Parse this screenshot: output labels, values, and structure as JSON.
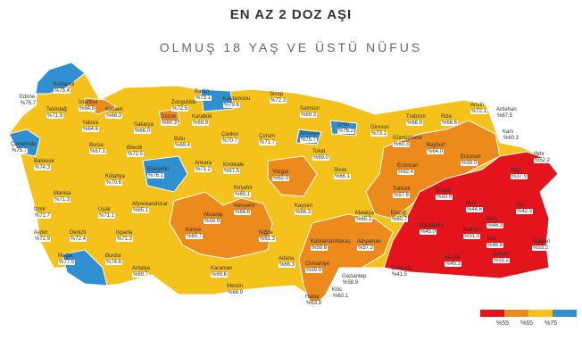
{
  "header": {
    "title": "EN AZ 2 DOZ AŞI",
    "subtitle": "OLMUŞ 18 YAŞ VE ÜSTÜ NÜFUS"
  },
  "colors": {
    "gt75": "#2f8fd0",
    "r65_75": "#f5c21b",
    "r55_65": "#ec8a1b",
    "lt55": "#e3141b",
    "border": "#ffffff"
  },
  "legend": {
    "labels": [
      "%55",
      "%65",
      "%75"
    ],
    "colors": [
      "#e3141b",
      "#ec8a1b",
      "#f5c21b",
      "#2f8fd0"
    ]
  },
  "provinces": [
    {
      "name": "Kırklareli",
      "value": "%75.4",
      "cls": "gt75"
    },
    {
      "name": "Edirne",
      "value": "%75.7",
      "cls": "gt75"
    },
    {
      "name": "Tekirdağ",
      "value": "%71.9",
      "cls": "r65_75"
    },
    {
      "name": "İstanbul",
      "value": "%64.9",
      "cls": "r55_65"
    },
    {
      "name": "Kocaeli",
      "value": "%68.3",
      "cls": "r65_75"
    },
    {
      "name": "Yalova",
      "value": "%64.6",
      "cls": "r55_65"
    },
    {
      "name": "Çanakkale",
      "value": "%75.7",
      "cls": "gt75"
    },
    {
      "name": "Balıkesir",
      "value": "%74.3",
      "cls": "r65_75"
    },
    {
      "name": "Bursa",
      "value": "%67.1",
      "cls": "r65_75"
    },
    {
      "name": "Sakarya",
      "value": "%66.0",
      "cls": "r65_75"
    },
    {
      "name": "Düzce",
      "value": "%60.3",
      "cls": "r55_65"
    },
    {
      "name": "Bilecik",
      "value": "%72.5",
      "cls": "r65_75"
    },
    {
      "name": "Bolu",
      "value": "%69.4",
      "cls": "r65_75"
    },
    {
      "name": "Zonguldak",
      "value": "%72.5",
      "cls": "r65_75"
    },
    {
      "name": "Bartın",
      "value": "%73.1",
      "cls": "r65_75"
    },
    {
      "name": "Karabük",
      "value": "%69.9",
      "cls": "r65_75"
    },
    {
      "name": "Kastamonu",
      "value": "%79.6",
      "cls": "gt75"
    },
    {
      "name": "Sinop",
      "value": "%72.3",
      "cls": "r65_75"
    },
    {
      "name": "Samsun",
      "value": "%69.3",
      "cls": "r65_75"
    },
    {
      "name": "Çankırı",
      "value": "%70.7",
      "cls": "r65_75"
    },
    {
      "name": "Çorum",
      "value": "%71.7",
      "cls": "r65_75"
    },
    {
      "name": "Amasya",
      "value": "%75.7",
      "cls": "gt75"
    },
    {
      "name": "Ordu",
      "value": "%76.2",
      "cls": "gt75"
    },
    {
      "name": "Giresun",
      "value": "%73.1",
      "cls": "r65_75"
    },
    {
      "name": "Trabzon",
      "value": "%68.9",
      "cls": "r65_75"
    },
    {
      "name": "Rize",
      "value": "%66.6",
      "cls": "r65_75"
    },
    {
      "name": "Artvin",
      "value": "%72.1",
      "cls": "r65_75"
    },
    {
      "name": "Ardahan",
      "value": "%67.5",
      "cls": "r65_75"
    },
    {
      "name": "Gümüşhane",
      "value": "%60.3",
      "cls": "r55_65"
    },
    {
      "name": "Bayburt",
      "value": "%64.0",
      "cls": "r55_65"
    },
    {
      "name": "Tokat",
      "value": "%69.0",
      "cls": "r65_75"
    },
    {
      "name": "Sivas",
      "value": "%66.1",
      "cls": "r65_75"
    },
    {
      "name": "Erzincan",
      "value": "%62.4",
      "cls": "r55_65"
    },
    {
      "name": "Erzurum",
      "value": "%59.0",
      "cls": "r55_65"
    },
    {
      "name": "Kars",
      "value": "%60.3",
      "cls": "r55_65"
    },
    {
      "name": "Iğdır",
      "value": "%52.2",
      "cls": "lt55"
    },
    {
      "name": "Ağrı",
      "value": "%37.9",
      "cls": "lt55"
    },
    {
      "name": "Eskişehir",
      "value": "%76.1",
      "cls": "gt75"
    },
    {
      "name": "Ankara",
      "value": "%71.2",
      "cls": "r65_75"
    },
    {
      "name": "Kırıkkale",
      "value": "%67.5",
      "cls": "r65_75"
    },
    {
      "name": "Yozgat",
      "value": "%62.0",
      "cls": "r55_65"
    },
    {
      "name": "Kütahya",
      "value": "%70.6",
      "cls": "r65_75"
    },
    {
      "name": "Manisa",
      "value": "%71.3",
      "cls": "r65_75"
    },
    {
      "name": "İzmir",
      "value": "%72.7",
      "cls": "r65_75"
    },
    {
      "name": "Uşak",
      "value": "%71.1",
      "cls": "r65_75"
    },
    {
      "name": "Afyonkarahisar",
      "value": "%65.1",
      "cls": "r65_75"
    },
    {
      "name": "Kırşehir",
      "value": "%69.1",
      "cls": "r65_75"
    },
    {
      "name": "Nevşehir",
      "value": "%64.6",
      "cls": "r55_65"
    },
    {
      "name": "Kayseri",
      "value": "%66.3",
      "cls": "r65_75"
    },
    {
      "name": "Tunceli",
      "value": "%57.6",
      "cls": "r55_65"
    },
    {
      "name": "Bingöl",
      "value": "%50.9",
      "cls": "lt55"
    },
    {
      "name": "Muş",
      "value": "%44.6",
      "cls": "lt55"
    },
    {
      "name": "Van",
      "value": "%42.3",
      "cls": "lt55"
    },
    {
      "name": "Aydın",
      "value": "%72.9",
      "cls": "r65_75"
    },
    {
      "name": "Denizli",
      "value": "%72.4",
      "cls": "r65_75"
    },
    {
      "name": "Isparta",
      "value": "%71.3",
      "cls": "r65_75"
    },
    {
      "name": "Konya",
      "value": "%60.7",
      "cls": "r55_65"
    },
    {
      "name": "Aksaray",
      "value": "%59.9",
      "cls": "r55_65"
    },
    {
      "name": "Niğde",
      "value": "%61.3",
      "cls": "r55_65"
    },
    {
      "name": "Malatya",
      "value": "%65.3",
      "cls": "r65_75"
    },
    {
      "name": "Elazığ",
      "value": "%60.7",
      "cls": "r55_65"
    },
    {
      "name": "Diyarbakır",
      "value": "%45.0",
      "cls": "lt55"
    },
    {
      "name": "Batman",
      "value": "%51.0",
      "cls": "lt55"
    },
    {
      "name": "Bitlis",
      "value": "%46.3",
      "cls": "lt55"
    },
    {
      "name": "Siirt",
      "value": "%46.8",
      "cls": "lt55"
    },
    {
      "name": "Şırnak",
      "value": "%51.2",
      "cls": "lt55"
    },
    {
      "name": "Hakkari",
      "value": "%53.2",
      "cls": "lt55"
    },
    {
      "name": "Muğla",
      "value": "%77.5",
      "cls": "gt75"
    },
    {
      "name": "Burdur",
      "value": "%74.6",
      "cls": "r65_75"
    },
    {
      "name": "Antalya",
      "value": "%69.7",
      "cls": "r65_75"
    },
    {
      "name": "Karaman",
      "value": "%69.6",
      "cls": "r65_75"
    },
    {
      "name": "Mersin",
      "value": "%68.9",
      "cls": "r65_75"
    },
    {
      "name": "Adana",
      "value": "%66.3",
      "cls": "r65_75"
    },
    {
      "name": "Kahramanmaraş",
      "value": "%59.8",
      "cls": "r55_65"
    },
    {
      "name": "Adıyaman",
      "value": "%57.2",
      "cls": "r55_65"
    },
    {
      "name": "Osmaniye",
      "value": "%59.9",
      "cls": "r55_65"
    },
    {
      "name": "Hatay",
      "value": "%63.9",
      "cls": "r55_65"
    },
    {
      "name": "Gaziantep",
      "value": "%58.9",
      "cls": "r55_65"
    },
    {
      "name": "Kilis",
      "value": "%60.1",
      "cls": "r55_65"
    },
    {
      "name": "Şanlıurfa",
      "value": "%41.5",
      "cls": "lt55"
    },
    {
      "name": "Mardin",
      "value": "%45.3",
      "cls": "lt55"
    }
  ]
}
